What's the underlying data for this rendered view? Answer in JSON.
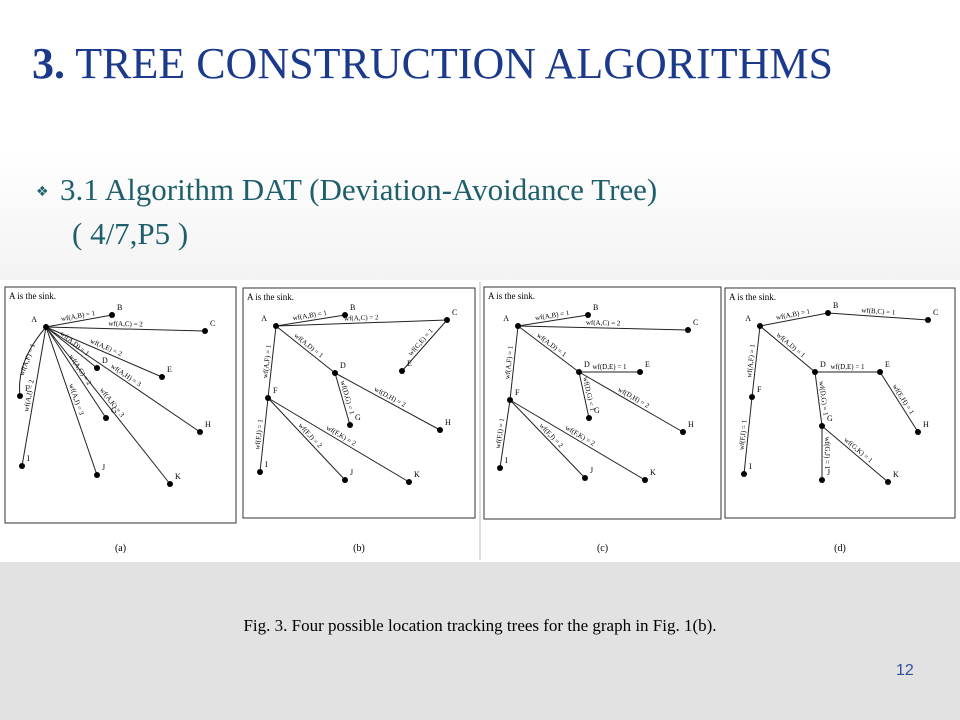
{
  "header": {
    "number": "3.",
    "title": "TREE CONSTRUCTION ALGORITHMS"
  },
  "bullet": {
    "text": "3.1 Algorithm DAT (Deviation-Avoidance Tree)",
    "reference": "( 4/7,P5 )"
  },
  "figure": {
    "panels": [
      {
        "note": "A is the sink.",
        "label": "(a)",
        "nodes": [
          "A",
          "B",
          "C",
          "D",
          "E",
          "F",
          "G",
          "H",
          "I",
          "J",
          "K"
        ],
        "edges": [
          "wf(A,B) = 1",
          "wf(A,C) = 2",
          "wf(A,E) = 2",
          "wf(A,F) = 1",
          "wf(A,H) = 3",
          "wf(A,D) = 1",
          "wf(A,G) = 2",
          "wf(A,K) = 3",
          "wf(A,J) = 3",
          "wf(A,I) = 2"
        ]
      },
      {
        "note": "A is the sink.",
        "label": "(b)",
        "nodes": [
          "A",
          "B",
          "C",
          "D",
          "E",
          "F",
          "G",
          "H",
          "I",
          "J",
          "K"
        ],
        "edges": [
          "wf(A,B) = 1",
          "wf(A,C) = 2",
          "wf(C,E) = 1",
          "wf(A,D) = 1",
          "wf(D,G) = 1",
          "wf(D,H) = 2",
          "wf(A,F) = 1",
          "wf(F,I) = 1",
          "wf(F,J) = 2",
          "wf(F,K) = 2"
        ]
      },
      {
        "note": "A is the sink.",
        "label": "(c)",
        "nodes": [
          "A",
          "B",
          "C",
          "D",
          "E",
          "F",
          "G",
          "H",
          "I",
          "J",
          "K"
        ],
        "edges": [
          "wf(A,B) = 1",
          "wf(A,C) = 2",
          "wf(A,D) = 1",
          "wf(D,E) = 1",
          "wf(D,G) = 1",
          "wf(D,H) = 2",
          "wf(A,F) = 1",
          "wf(F,I) = 1",
          "wf(F,J) = 2",
          "wf(F,K) = 2"
        ]
      },
      {
        "note": "A is the sink.",
        "label": "(d)",
        "nodes": [
          "A",
          "B",
          "C",
          "D",
          "E",
          "F",
          "G",
          "H",
          "I",
          "J",
          "K"
        ],
        "edges": [
          "wf(A,B) = 1",
          "wf(B,C) = 1",
          "wf(A,D) = 1",
          "wf(D,E) = 1",
          "wf(E,H) = 1",
          "wf(D,G) = 1",
          "wf(G,J) = 1",
          "wf(G,K) = 1",
          "wf(A,F) = 1",
          "wf(F,I) = 1"
        ]
      }
    ],
    "caption": "Fig. 3. Four possible location tracking trees for the graph in Fig. 1(b)."
  },
  "page_number": "12"
}
